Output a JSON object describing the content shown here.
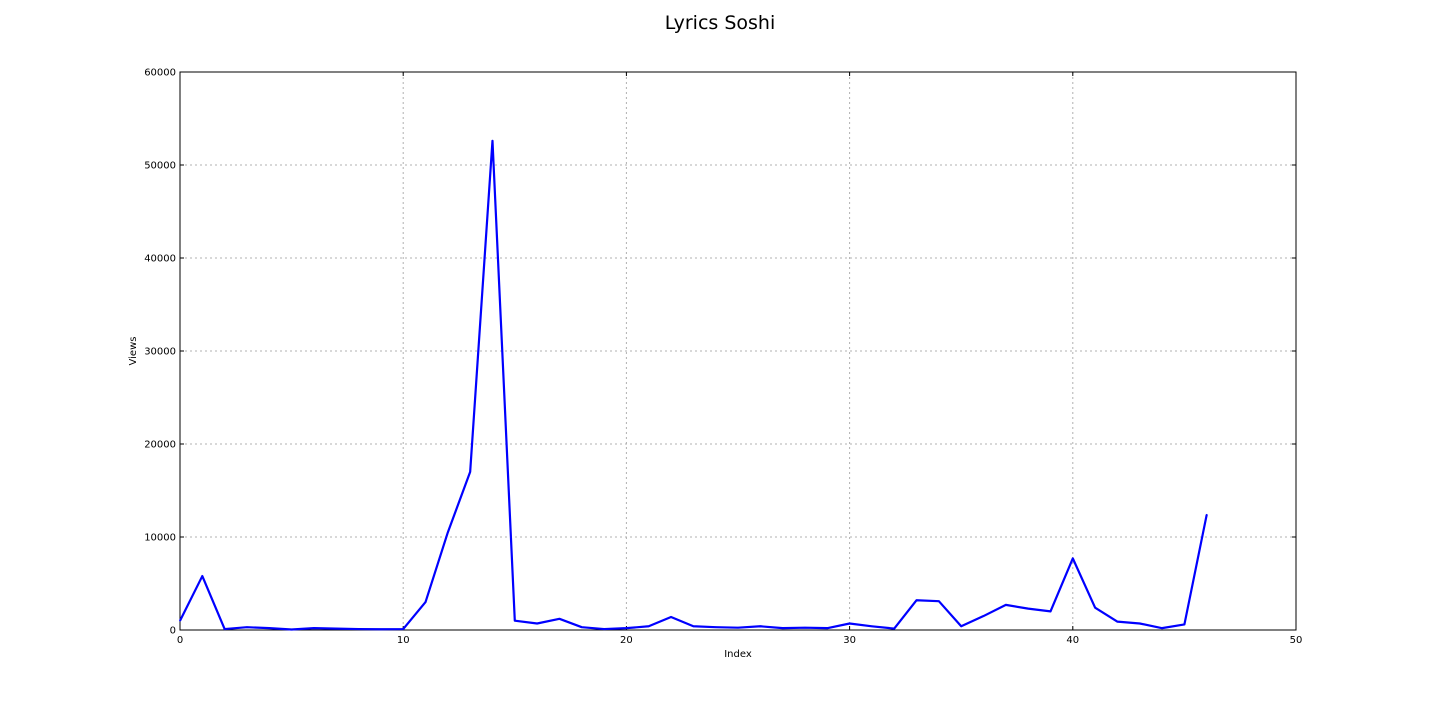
{
  "chart_data": {
    "type": "line",
    "title": "Lyrics Soshi",
    "xlabel": "Index",
    "ylabel": "Views",
    "xlim": [
      0,
      50
    ],
    "ylim": [
      0,
      60000
    ],
    "xticks": [
      0,
      10,
      20,
      30,
      40,
      50
    ],
    "yticks": [
      0,
      10000,
      20000,
      30000,
      40000,
      50000,
      60000
    ],
    "grid": true,
    "line_color": "#0000ff",
    "series": [
      {
        "x": [
          0,
          1,
          2,
          3,
          4,
          5,
          6,
          7,
          8,
          9,
          10,
          11,
          12,
          13,
          14,
          15,
          16,
          17,
          18,
          19,
          20,
          21,
          22,
          23,
          24,
          25,
          26,
          27,
          28,
          29,
          30,
          31,
          32,
          33,
          34,
          35,
          36,
          37,
          38,
          39,
          40,
          41,
          42,
          43,
          44,
          45,
          46
        ],
        "values": [
          1000,
          5800,
          100,
          300,
          200,
          50,
          200,
          150,
          100,
          80,
          100,
          3000,
          10500,
          17000,
          52600,
          1000,
          700,
          1200,
          300,
          100,
          200,
          400,
          1400,
          400,
          300,
          250,
          400,
          200,
          250,
          200,
          700,
          400,
          150,
          3200,
          3100,
          400,
          1500,
          2700,
          2300,
          2000,
          7700,
          2400,
          900,
          700,
          200,
          600,
          12400
        ]
      }
    ]
  }
}
